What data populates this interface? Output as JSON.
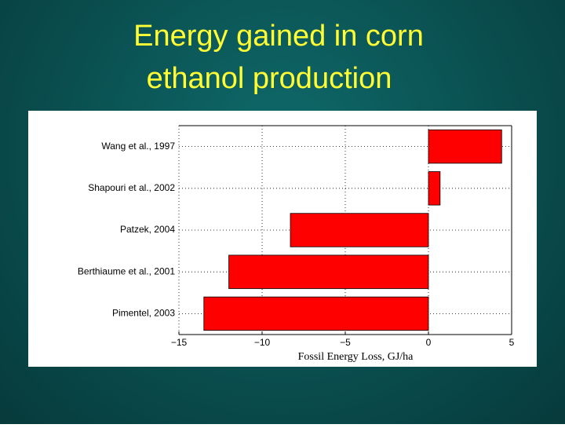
{
  "chart_data": {
    "type": "barh",
    "title": [
      "Energy gained in corn",
      "ethanol production"
    ],
    "categories": [
      "Wang et al., 1997",
      "Shapouri et al., 2002",
      "Patzek, 2004",
      "Berthiaume et al., 2001",
      "Pimentel, 2003"
    ],
    "values": [
      4.4,
      0.7,
      -8.3,
      -12.0,
      -13.5
    ],
    "color": "#ff0000",
    "xlabel": "Fossil Energy Loss, GJ/ha",
    "xlim": [
      -15,
      5
    ],
    "xticks": [
      {
        "value": -15,
        "label": "−15"
      },
      {
        "value": -10,
        "label": "−10"
      },
      {
        "value": -5,
        "label": "−5"
      },
      0,
      5
    ],
    "grid": true
  }
}
